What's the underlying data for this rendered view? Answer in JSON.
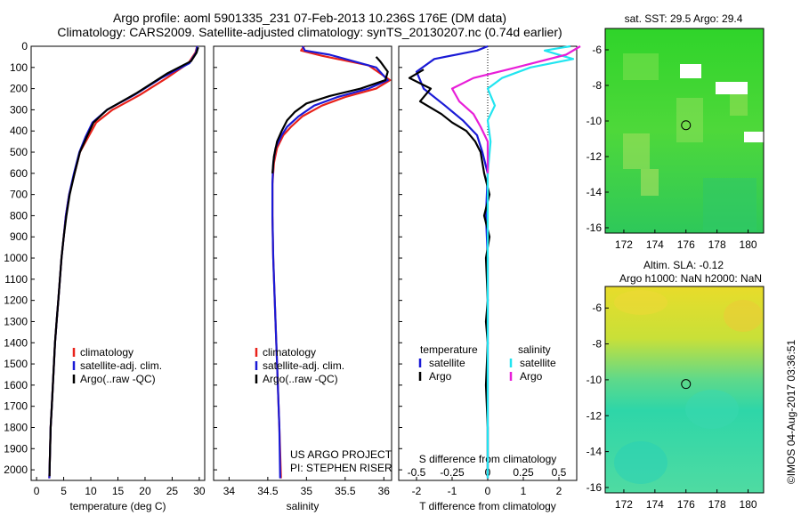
{
  "title_line1": "Argo profile: aoml 5901335_231 07-Feb-2013 10.236S 176E (DM data)",
  "title_line2": "Climatology: CARS2009. Satellite-adjusted climatology: synTS_20130207.nc (0.74d earlier)",
  "watermark": "©IMOS 04-Aug-2017 03:36:51",
  "colors": {
    "climatology": "#e8221b",
    "satellite": "#1a1ad6",
    "argo": "#000000",
    "sal_satellite": "#22e5f0",
    "sal_argo": "#e81ed8"
  },
  "chart_data": [
    {
      "id": "temperature",
      "type": "line",
      "xlabel": "temperature (deg C)",
      "xlim": [
        -1,
        31
      ],
      "xticks": [
        0,
        5,
        10,
        15,
        20,
        25,
        30
      ],
      "ylim": [
        2050,
        0
      ],
      "yticks": [
        0,
        100,
        200,
        300,
        400,
        500,
        600,
        700,
        800,
        900,
        1000,
        1100,
        1200,
        1300,
        1400,
        1500,
        1600,
        1700,
        1800,
        1900,
        2000
      ],
      "legend": [
        "climatology",
        "satellite-adj. clim.",
        "Argo(..raw -QC)"
      ],
      "series": [
        {
          "name": "climatology",
          "color": "climatology",
          "points": [
            [
              29.6,
              0
            ],
            [
              29.3,
              30
            ],
            [
              28,
              80
            ],
            [
              24,
              150
            ],
            [
              19,
              230
            ],
            [
              14,
              300
            ],
            [
              11,
              360
            ],
            [
              9.5,
              430
            ],
            [
              8,
              500
            ],
            [
              7,
              600
            ],
            [
              6,
              700
            ],
            [
              5.4,
              800
            ],
            [
              5,
              900
            ],
            [
              4.6,
              1000
            ],
            [
              4.3,
              1100
            ],
            [
              4,
              1200
            ],
            [
              3.7,
              1300
            ],
            [
              3.4,
              1400
            ],
            [
              3.2,
              1500
            ],
            [
              3,
              1600
            ],
            [
              2.8,
              1700
            ],
            [
              2.6,
              1800
            ],
            [
              2.5,
              1900
            ],
            [
              2.4,
              2000
            ],
            [
              2.35,
              2040
            ]
          ]
        },
        {
          "name": "satellite-adj. clim.",
          "color": "satellite",
          "points": [
            [
              29.6,
              0
            ],
            [
              29.4,
              30
            ],
            [
              28.2,
              80
            ],
            [
              23,
              150
            ],
            [
              18,
              230
            ],
            [
              13,
              300
            ],
            [
              10.3,
              360
            ],
            [
              9,
              430
            ],
            [
              7.9,
              500
            ],
            [
              6.9,
              600
            ],
            [
              6,
              700
            ],
            [
              5.4,
              800
            ],
            [
              5,
              900
            ],
            [
              4.6,
              1000
            ],
            [
              4.3,
              1100
            ],
            [
              4,
              1200
            ],
            [
              3.7,
              1300
            ],
            [
              3.4,
              1400
            ],
            [
              3.2,
              1500
            ],
            [
              3,
              1600
            ],
            [
              2.8,
              1700
            ],
            [
              2.6,
              1800
            ],
            [
              2.5,
              1900
            ],
            [
              2.4,
              2000
            ],
            [
              2.35,
              2040
            ]
          ]
        },
        {
          "name": "Argo(..raw -QC)",
          "color": "argo",
          "points": [
            [
              29.8,
              5
            ],
            [
              29.5,
              30
            ],
            [
              28.5,
              70
            ],
            [
              24,
              130
            ],
            [
              18.5,
              220
            ],
            [
              13,
              300
            ],
            [
              10.5,
              360
            ],
            [
              9.2,
              430
            ],
            [
              8,
              500
            ],
            [
              7,
              600
            ],
            [
              6.1,
              700
            ],
            [
              5.5,
              800
            ],
            [
              5,
              900
            ],
            [
              4.6,
              1000
            ],
            [
              4.3,
              1100
            ],
            [
              4,
              1200
            ],
            [
              3.7,
              1300
            ],
            [
              3.4,
              1400
            ],
            [
              3.2,
              1500
            ],
            [
              3,
              1600
            ],
            [
              2.8,
              1700
            ],
            [
              2.6,
              1800
            ],
            [
              2.5,
              1900
            ],
            [
              2.4,
              2000
            ],
            [
              2.4,
              2030
            ]
          ]
        }
      ]
    },
    {
      "id": "salinity",
      "type": "line",
      "xlabel": "salinity",
      "xlim": [
        33.8,
        36.1
      ],
      "xticks": [
        34,
        34.5,
        35,
        35.5,
        36
      ],
      "xtick_labels": [
        "34",
        "34.5",
        "35",
        "35.5",
        "36"
      ],
      "ylim": [
        2050,
        0
      ],
      "legend": [
        "climatology",
        "satellite-adj. clim.",
        "Argo(..raw -QC)"
      ],
      "annotation": [
        "US ARGO PROJECT",
        "PI: STEPHEN RISER"
      ],
      "series": [
        {
          "name": "climatology",
          "color": "climatology",
          "points": [
            [
              34.97,
              0
            ],
            [
              34.93,
              20
            ],
            [
              35.2,
              45
            ],
            [
              35.8,
              90
            ],
            [
              36.08,
              160
            ],
            [
              35.9,
              200
            ],
            [
              35.5,
              240
            ],
            [
              35.2,
              280
            ],
            [
              34.95,
              330
            ],
            [
              34.8,
              380
            ],
            [
              34.7,
              420
            ],
            [
              34.62,
              480
            ],
            [
              34.58,
              550
            ],
            [
              34.56,
              650
            ],
            [
              34.56,
              800
            ],
            [
              34.57,
              1000
            ],
            [
              34.59,
              1200
            ],
            [
              34.62,
              1500
            ],
            [
              34.65,
              1800
            ],
            [
              34.67,
              2040
            ]
          ]
        },
        {
          "name": "satellite-adj. clim.",
          "color": "satellite",
          "points": [
            [
              34.95,
              0
            ],
            [
              34.98,
              20
            ],
            [
              35.3,
              40
            ],
            [
              35.9,
              100
            ],
            [
              36.05,
              160
            ],
            [
              35.8,
              200
            ],
            [
              35.4,
              240
            ],
            [
              35.1,
              280
            ],
            [
              34.9,
              330
            ],
            [
              34.75,
              380
            ],
            [
              34.68,
              420
            ],
            [
              34.6,
              480
            ],
            [
              34.57,
              550
            ],
            [
              34.56,
              650
            ],
            [
              34.56,
              800
            ],
            [
              34.57,
              1000
            ],
            [
              34.59,
              1200
            ],
            [
              34.62,
              1500
            ],
            [
              34.65,
              1800
            ],
            [
              34.66,
              2040
            ]
          ]
        },
        {
          "name": "Argo(..raw -QC)",
          "color": "argo",
          "points": [
            [
              35.9,
              50
            ],
            [
              35.95,
              70
            ],
            [
              36.05,
              120
            ],
            [
              36.02,
              160
            ],
            [
              35.7,
              200
            ],
            [
              35.3,
              235
            ],
            [
              35,
              270
            ],
            [
              34.85,
              310
            ],
            [
              34.75,
              350
            ],
            [
              34.68,
              400
            ],
            [
              34.62,
              450
            ],
            [
              34.58,
              520
            ],
            [
              34.56,
              600
            ]
          ]
        }
      ]
    },
    {
      "id": "differences",
      "type": "line",
      "xlabel": "T difference from climatology",
      "xlabel_top": "S difference from climatology",
      "xlim": [
        -2.5,
        2.5
      ],
      "xticks": [
        -2,
        -1,
        0,
        1,
        2
      ],
      "xtick_labels": [
        "-2",
        "-1",
        "0",
        "1",
        "2"
      ],
      "top_ticks": [
        -0.5,
        -0.25,
        0,
        0.25,
        0.5
      ],
      "top_tick_labels": [
        "-0.5",
        "-0.25",
        "0",
        "0.25",
        "0.5"
      ],
      "ylim": [
        2050,
        0
      ],
      "legend": {
        "temperature_title": "temperature",
        "salinity_title": "salinity",
        "items": [
          "satellite",
          "Argo",
          "satellite",
          "Argo"
        ]
      },
      "series": [
        {
          "name": "temperature satellite",
          "color": "satellite",
          "x_scale": "T",
          "points": [
            [
              0,
              0
            ],
            [
              -0.3,
              20
            ],
            [
              -1.5,
              60
            ],
            [
              -2,
              120
            ],
            [
              -1.8,
              200
            ],
            [
              -1.2,
              280
            ],
            [
              -0.7,
              350
            ],
            [
              -0.3,
              420
            ],
            [
              -0.15,
              500
            ],
            [
              0,
              600
            ],
            [
              -0.05,
              800
            ],
            [
              0,
              1000
            ],
            [
              0,
              1500
            ],
            [
              0,
              2040
            ]
          ]
        },
        {
          "name": "temperature Argo",
          "color": "argo",
          "x_scale": "T",
          "points": [
            [
              -1.8,
              110
            ],
            [
              -2.2,
              150
            ],
            [
              -1.6,
              200
            ],
            [
              -1.9,
              260
            ],
            [
              -1.3,
              320
            ],
            [
              -1,
              360
            ],
            [
              -0.6,
              400
            ],
            [
              -0.35,
              450
            ],
            [
              -0.2,
              500
            ],
            [
              -0.1,
              600
            ],
            [
              0.05,
              700
            ],
            [
              -0.1,
              800
            ],
            [
              0.05,
              900
            ],
            [
              -0.05,
              1000
            ],
            [
              0,
              1200
            ],
            [
              -0.05,
              1300
            ],
            [
              0,
              1400
            ],
            [
              -0.05,
              1600
            ],
            [
              0,
              1800
            ],
            [
              0,
              2030
            ]
          ]
        },
        {
          "name": "salinity satellite",
          "color": "sal_satellite",
          "x_scale": "S",
          "points": [
            [
              0.58,
              0
            ],
            [
              0.4,
              20
            ],
            [
              0.6,
              60
            ],
            [
              0.3,
              100
            ],
            [
              0.1,
              150
            ],
            [
              0,
              200
            ],
            [
              0.05,
              280
            ],
            [
              0,
              350
            ],
            [
              0.02,
              450
            ],
            [
              0,
              600
            ],
            [
              0,
              800
            ],
            [
              0,
              1000
            ],
            [
              0,
              1500
            ],
            [
              0,
              2040
            ]
          ]
        },
        {
          "name": "salinity Argo",
          "color": "sal_argo",
          "x_scale": "S",
          "points": [
            [
              0.65,
              0
            ],
            [
              0.55,
              40
            ],
            [
              0.2,
              100
            ],
            [
              -0.1,
              150
            ],
            [
              -0.25,
              200
            ],
            [
              -0.2,
              260
            ],
            [
              -0.1,
              320
            ],
            [
              -0.05,
              380
            ],
            [
              0,
              450
            ],
            [
              0,
              600
            ]
          ]
        }
      ]
    },
    {
      "id": "sst_map",
      "type": "heatmap",
      "title": "sat. SST: 29.5 Argo: 29.4",
      "xlim": [
        170.8,
        181
      ],
      "ylim": [
        -16.3,
        -4.8
      ],
      "xticks": [
        172,
        174,
        176,
        178,
        180
      ],
      "yticks": [
        -6,
        -8,
        -10,
        -12,
        -14,
        -16
      ],
      "ytick_labels": [
        "-6",
        "-8",
        "-10",
        "-12",
        "-14",
        "-16"
      ],
      "profile_location": [
        176,
        -10.236
      ]
    },
    {
      "id": "sla_map",
      "type": "heatmap",
      "title_line1": "Altim. SLA: -0.12",
      "title_line2": "Argo h1000: NaN h2000: NaN",
      "xlim": [
        170.8,
        181
      ],
      "ylim": [
        -16.3,
        -4.8
      ],
      "xticks": [
        172,
        174,
        176,
        178,
        180
      ],
      "yticks": [
        -6,
        -8,
        -10,
        -12,
        -14,
        -16
      ],
      "ytick_labels": [
        "-6",
        "-8",
        "-10",
        "-12",
        "-14",
        "-16"
      ],
      "profile_location": [
        176,
        -10.236
      ]
    }
  ]
}
